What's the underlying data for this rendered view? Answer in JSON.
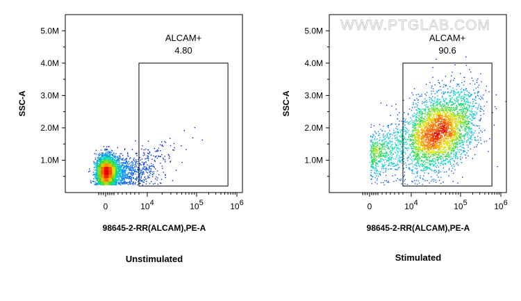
{
  "watermark": "WWW.PTGLAB.COM",
  "chart_data": [
    {
      "type": "scatter",
      "style": "density-pseudocolor",
      "caption": "Unstimulated",
      "xlabel": "98645-2-RR(ALCAM),PE-A",
      "ylabel": "SSC-A",
      "x_scale": "biexponential",
      "y_scale": "linear",
      "ylim": [
        0,
        5500000
      ],
      "y_ticks": [
        {
          "v": 1000000,
          "label": "1.0M"
        },
        {
          "v": 2000000,
          "label": "2.0M"
        },
        {
          "v": 3000000,
          "label": "3.0M"
        },
        {
          "v": 4000000,
          "label": "4.0M"
        },
        {
          "v": 5000000,
          "label": "5.0M"
        }
      ],
      "x_ticks": [
        {
          "v": 0,
          "label": "0"
        },
        {
          "v": 10000,
          "base": "10",
          "exp": "4"
        },
        {
          "v": 100000,
          "base": "10",
          "exp": "5"
        },
        {
          "v": 1000000,
          "base": "10",
          "exp": "6"
        }
      ],
      "gate": {
        "name": "ALCAM+",
        "value": "4.80",
        "x_range": [
          8000,
          600000
        ],
        "y_range": [
          200000,
          4000000
        ]
      },
      "populations": [
        {
          "x_center": 0,
          "x_spread": 1.0,
          "y_center": 650000,
          "y_spread": 250000,
          "share": 0.95
        },
        {
          "x_center": 6000,
          "x_spread": 0.45,
          "y_center": 850000,
          "y_spread": 250000,
          "share": 0.05
        }
      ]
    },
    {
      "type": "scatter",
      "style": "density-pseudocolor",
      "caption": "Stimulated",
      "xlabel": "98645-2-RR(ALCAM),PE-A",
      "ylabel": "SSC-A",
      "x_scale": "biexponential",
      "y_scale": "linear",
      "ylim": [
        0,
        5500000
      ],
      "y_ticks": [
        {
          "v": 1000000,
          "label": "1.0M"
        },
        {
          "v": 2000000,
          "label": "2.0M"
        },
        {
          "v": 3000000,
          "label": "3.0M"
        },
        {
          "v": 4000000,
          "label": "4.0M"
        },
        {
          "v": 5000000,
          "label": "5.0M"
        }
      ],
      "x_ticks": [
        {
          "v": 0,
          "label": "0"
        },
        {
          "v": 10000,
          "base": "10",
          "exp": "4"
        },
        {
          "v": 100000,
          "base": "10",
          "exp": "5"
        },
        {
          "v": 1000000,
          "base": "10",
          "exp": "6"
        }
      ],
      "gate": {
        "name": "ALCAM+",
        "value": "90.6",
        "x_range": [
          8000,
          600000
        ],
        "y_range": [
          200000,
          4000000
        ]
      },
      "populations": [
        {
          "x_center": 35000,
          "x_spread": 0.4,
          "y_center": 1900000,
          "y_spread": 600000,
          "share": 0.85
        },
        {
          "x_center": 3000,
          "x_spread": 0.6,
          "y_center": 1300000,
          "y_spread": 350000,
          "share": 0.15
        }
      ]
    }
  ]
}
